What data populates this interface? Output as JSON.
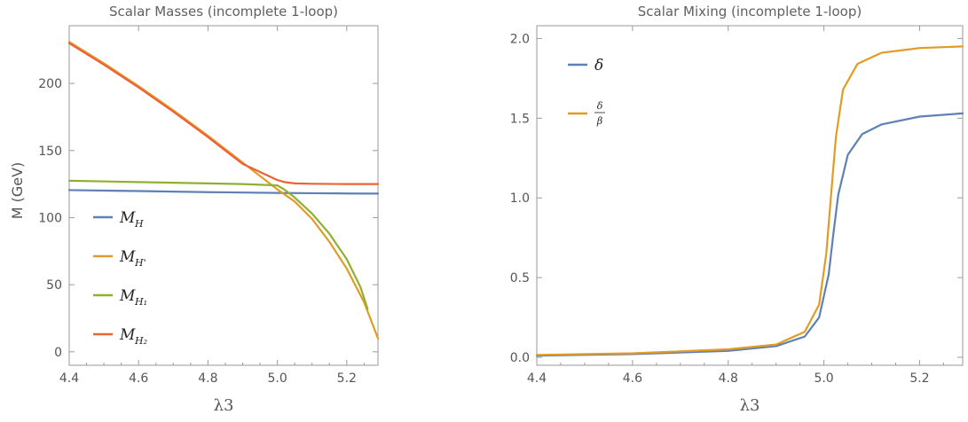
{
  "chart_data": [
    {
      "type": "line",
      "title": "Scalar Masses (incomplete 1-loop)",
      "xlabel": "λ3",
      "ylabel": "M (GeV)",
      "xlim": [
        4.4,
        5.29
      ],
      "ylim": [
        -10,
        243
      ],
      "x_ticks": [
        "4.4",
        "4.6",
        "4.8",
        "5.0",
        "5.2"
      ],
      "y_ticks": [
        "0",
        "50",
        "100",
        "150",
        "200"
      ],
      "grid": false,
      "legend_position": "left",
      "series": [
        {
          "name": "M_H",
          "legend_main": "M",
          "legend_sub": "H",
          "color": "#5e81b5",
          "x": [
            4.4,
            4.6,
            4.8,
            5.0,
            5.1,
            5.2,
            5.29
          ],
          "y": [
            120.5,
            119.8,
            119.0,
            118.4,
            118.2,
            118.0,
            117.9
          ]
        },
        {
          "name": "M_H'",
          "legend_main": "M",
          "legend_sub": "H'",
          "color": "#e19c24",
          "x": [
            4.4,
            4.5,
            4.6,
            4.7,
            4.8,
            4.9,
            5.0,
            5.05,
            5.1,
            5.15,
            5.2,
            5.25,
            5.29
          ],
          "y": [
            231,
            215,
            198,
            180,
            161,
            141,
            121,
            112,
            99,
            82,
            62,
            37,
            10
          ]
        },
        {
          "name": "M_H1",
          "legend_main": "M",
          "legend_sub": "H₁",
          "color": "#8fb032",
          "x": [
            4.4,
            4.6,
            4.8,
            4.9,
            5.0,
            5.02,
            5.05,
            5.1,
            5.15,
            5.2,
            5.24,
            5.26
          ],
          "y": [
            127.5,
            126.5,
            125.5,
            125,
            124,
            121,
            115,
            103,
            88,
            69,
            48,
            32
          ]
        },
        {
          "name": "M_H2",
          "legend_main": "M",
          "legend_sub": "H₂",
          "color": "#eb6235",
          "x": [
            4.4,
            4.5,
            4.6,
            4.7,
            4.8,
            4.9,
            5.0,
            5.02,
            5.05,
            5.1,
            5.2,
            5.29
          ],
          "y": [
            230,
            214,
            197,
            179,
            160,
            140,
            128,
            126.5,
            125.5,
            125.2,
            125.0,
            125.0
          ]
        }
      ]
    },
    {
      "type": "line",
      "title": "Scalar Mixing (incomplete 1-loop)",
      "xlabel": "λ3",
      "ylabel": "",
      "xlim": [
        4.4,
        5.29
      ],
      "ylim": [
        -0.05,
        2.08
      ],
      "x_ticks": [
        "4.4",
        "4.6",
        "4.8",
        "5.0",
        "5.2"
      ],
      "y_ticks": [
        "0.0",
        "0.5",
        "1.0",
        "1.5",
        "2.0"
      ],
      "grid": false,
      "legend_position": "top-left",
      "series": [
        {
          "name": "δ",
          "legend_main": "δ",
          "color": "#5e81b5",
          "x": [
            4.4,
            4.6,
            4.8,
            4.9,
            4.96,
            4.99,
            5.01,
            5.02,
            5.03,
            5.05,
            5.08,
            5.12,
            5.2,
            5.29
          ],
          "y": [
            0.01,
            0.02,
            0.04,
            0.07,
            0.13,
            0.25,
            0.52,
            0.78,
            1.02,
            1.27,
            1.4,
            1.46,
            1.51,
            1.53
          ]
        },
        {
          "name": "δ/β",
          "legend_num": "δ",
          "legend_den": "β",
          "color": "#e19c24",
          "x": [
            4.4,
            4.6,
            4.8,
            4.9,
            4.96,
            4.99,
            5.005,
            5.015,
            5.025,
            5.04,
            5.07,
            5.12,
            5.2,
            5.29
          ],
          "y": [
            0.015,
            0.025,
            0.05,
            0.08,
            0.16,
            0.33,
            0.65,
            1.02,
            1.38,
            1.68,
            1.84,
            1.91,
            1.94,
            1.95
          ]
        }
      ]
    }
  ]
}
